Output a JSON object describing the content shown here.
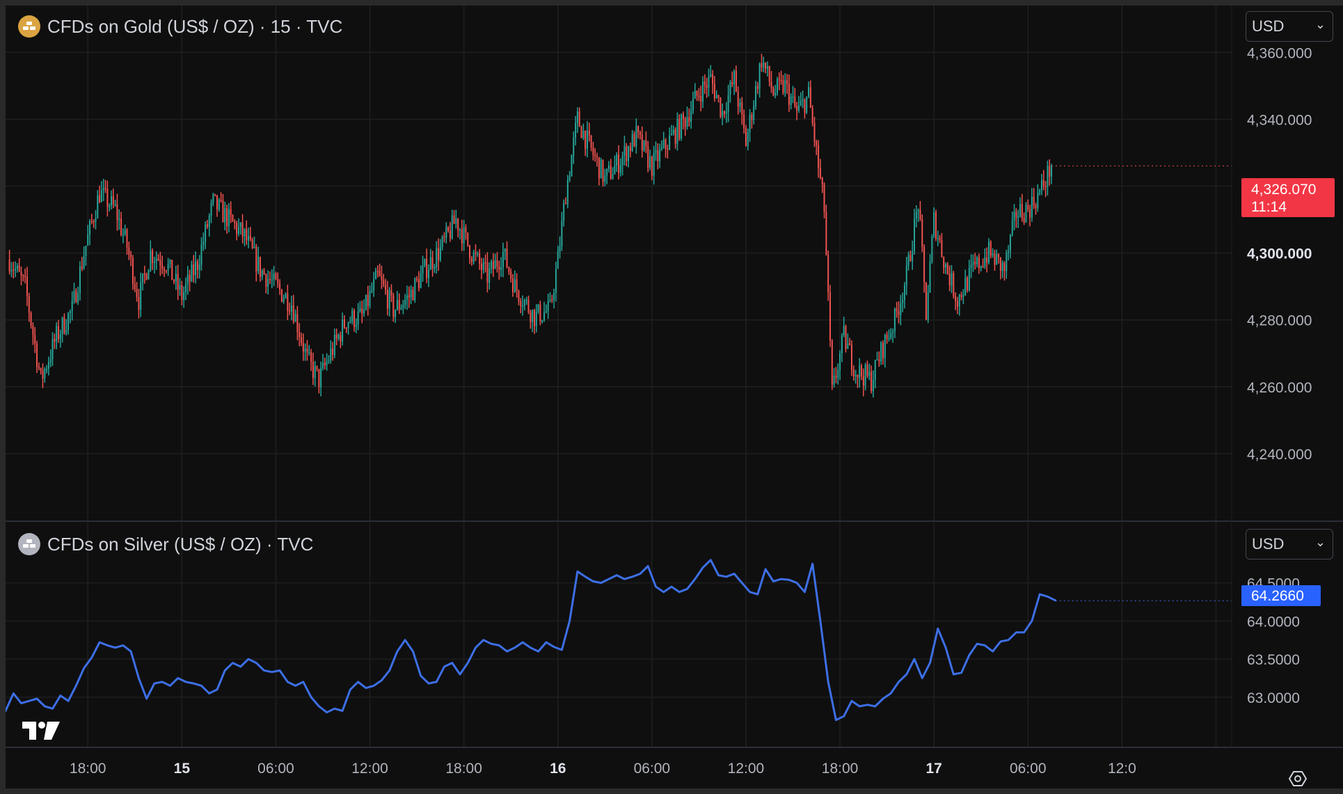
{
  "gold_legend": {
    "icon": "gold-bars-icon",
    "title": "CFDs on Gold (US$ / OZ) · 15 · TVC",
    "icon_color": "#d9a441"
  },
  "silver_legend": {
    "icon": "silver-bars-icon",
    "title": "CFDs on Silver (US$ / OZ) · TVC",
    "icon_color": "#b2b5be"
  },
  "gold_currency": {
    "value": "USD"
  },
  "silver_currency": {
    "value": "USD"
  },
  "gold_last": {
    "price": "4,326.070",
    "countdown": "11:14",
    "color": "#f23645"
  },
  "silver_last": {
    "price": "64.2660",
    "color": "#2962ff"
  },
  "settings": {
    "icon": "gear-icon"
  },
  "logo": {
    "icon": "tradingview-logo-icon"
  },
  "colors": {
    "background": "#0f0f0f",
    "grid": "#1f1f1f",
    "up": "#26a69a",
    "down": "#ef5350",
    "silver_line": "#3d6fe6",
    "text": "#d1d4dc"
  },
  "chart_data": [
    {
      "type": "candlestick",
      "title": "CFDs on Gold (US$ / OZ) · 15 · TVC",
      "ylim": [
        4220,
        4374
      ],
      "y_ticks": [
        4240,
        4260,
        4280,
        4300,
        4340,
        4360
      ],
      "y_tick_labels": [
        "4,240.000",
        "4,260.000",
        "4,280.000",
        "4,300.000",
        "4,340.000",
        "4,360.000"
      ],
      "emphasized_tick": "4,300.000",
      "x_ticks": [
        18,
        30,
        42,
        54,
        66,
        78,
        90,
        102,
        114,
        126,
        138,
        150,
        162
      ],
      "x_tick_labels": [
        "18:00",
        "15",
        "06:00",
        "12:00",
        "18:00",
        "16",
        "06:00",
        "12:00",
        "18:00",
        "17",
        "06:00",
        "12:0"
      ],
      "bold_x_ticks": [
        "15",
        "16",
        "17"
      ],
      "x_label_positions": [
        18,
        30,
        42,
        54,
        66,
        78,
        90,
        102,
        114,
        126,
        138,
        150
      ],
      "x_range_hours": [
        7.5,
        164
      ],
      "grid": true,
      "anchors": [
        [
          8,
          4298
        ],
        [
          10,
          4290
        ],
        [
          12,
          4262
        ],
        [
          14,
          4275
        ],
        [
          16,
          4283
        ],
        [
          17.5,
          4300
        ],
        [
          19.5,
          4318
        ],
        [
          21.5,
          4313
        ],
        [
          23,
          4302
        ],
        [
          24.5,
          4286
        ],
        [
          26,
          4300
        ],
        [
          28,
          4297
        ],
        [
          30,
          4287
        ],
        [
          32,
          4297
        ],
        [
          34,
          4315
        ],
        [
          36,
          4310
        ],
        [
          38,
          4305
        ],
        [
          40,
          4295
        ],
        [
          42,
          4290
        ],
        [
          44,
          4285
        ],
        [
          46,
          4268
        ],
        [
          47.5,
          4262
        ],
        [
          49,
          4270
        ],
        [
          51,
          4280
        ],
        [
          53,
          4281
        ],
        [
          55,
          4293
        ],
        [
          57,
          4283
        ],
        [
          59,
          4287
        ],
        [
          61,
          4295
        ],
        [
          63,
          4301
        ],
        [
          65,
          4310
        ],
        [
          67,
          4300
        ],
        [
          69,
          4293
        ],
        [
          71,
          4300
        ],
        [
          72.5,
          4290
        ],
        [
          75,
          4281
        ],
        [
          77,
          4283
        ],
        [
          78,
          4298
        ],
        [
          79,
          4318
        ],
        [
          80.5,
          4340
        ],
        [
          82,
          4332
        ],
        [
          84,
          4322
        ],
        [
          86,
          4328
        ],
        [
          88,
          4335
        ],
        [
          90,
          4326
        ],
        [
          92,
          4333
        ],
        [
          94,
          4339
        ],
        [
          96,
          4348
        ],
        [
          97.5,
          4352
        ],
        [
          99,
          4342
        ],
        [
          100.5,
          4352
        ],
        [
          102,
          4333
        ],
        [
          104,
          4358
        ],
        [
          105.5,
          4348
        ],
        [
          107,
          4350
        ],
        [
          108.5,
          4342
        ],
        [
          110,
          4347
        ],
        [
          111,
          4330
        ],
        [
          112,
          4313
        ],
        [
          113,
          4258
        ],
        [
          114.5,
          4275
        ],
        [
          116,
          4265
        ],
        [
          118,
          4262
        ],
        [
          119.5,
          4272
        ],
        [
          121,
          4280
        ],
        [
          122.5,
          4293
        ],
        [
          124,
          4315
        ],
        [
          125,
          4282
        ],
        [
          126,
          4310
        ],
        [
          127.5,
          4296
        ],
        [
          129,
          4286
        ],
        [
          131,
          4295
        ],
        [
          133,
          4300
        ],
        [
          135,
          4295
        ],
        [
          136.5,
          4312
        ],
        [
          138,
          4313
        ],
        [
          139.5,
          4318
        ],
        [
          141,
          4326
        ]
      ],
      "last_price": 4326.07,
      "price_label": "4,326.070",
      "countdown": "11:14"
    },
    {
      "type": "line",
      "title": "CFDs on Silver (US$ / OZ) · TVC",
      "ylim": [
        62.35,
        65.3
      ],
      "y_ticks": [
        63.0,
        63.5,
        64.0,
        64.5
      ],
      "y_tick_labels": [
        "63.0000",
        "63.5000",
        "64.0000",
        "64.5000"
      ],
      "x": [
        7.5,
        8.5,
        9.5,
        10.5,
        11.5,
        12.5,
        13.5,
        14.5,
        15.5,
        16.5,
        17.5,
        18.5,
        19.5,
        20.5,
        21.5,
        22.5,
        23.5,
        24.5,
        25.5,
        26.5,
        27.5,
        28.5,
        29.5,
        30.5,
        31.5,
        32.5,
        33.5,
        34.5,
        35.5,
        36.5,
        37.5,
        38.5,
        39.5,
        40.5,
        41.5,
        42.5,
        43.5,
        44.5,
        45.5,
        46.5,
        47.5,
        48.5,
        49.5,
        50.5,
        51.5,
        52.5,
        53.5,
        54.5,
        55.5,
        56.5,
        57.5,
        58.5,
        59.5,
        60.5,
        61.5,
        62.5,
        63.5,
        64.5,
        65.5,
        66.5,
        67.5,
        68.5,
        69.5,
        70.5,
        71.5,
        72.5,
        73.5,
        74.5,
        75.5,
        76.5,
        77.5,
        78.5,
        79.5,
        80.5,
        81.5,
        82.5,
        83.5,
        84.5,
        85.5,
        86.5,
        87.5,
        88.5,
        89.5,
        90.5,
        91.5,
        92.5,
        93.5,
        94.5,
        95.5,
        96.5,
        97.5,
        98.5,
        99.5,
        100.5,
        101.5,
        102.5,
        103.5,
        104.5,
        105.5,
        106.5,
        107.5,
        108.5,
        109.5,
        110.5,
        111.5,
        112.5,
        113.5,
        114.5,
        115.5,
        116.5,
        117.5,
        118.5,
        119.5,
        120.5,
        121.5,
        122.5,
        123.5,
        124.5,
        125.5,
        126.5,
        127.5,
        128.5,
        129.5,
        130.5,
        131.5,
        132.5,
        133.5,
        134.5,
        135.5,
        136.5,
        137.5,
        138.5,
        139.5,
        140.5,
        141.5
      ],
      "values": [
        62.82,
        63.05,
        62.92,
        62.95,
        62.98,
        62.88,
        62.85,
        63.02,
        62.95,
        63.15,
        63.38,
        63.52,
        63.72,
        63.68,
        63.65,
        63.68,
        63.6,
        63.25,
        62.98,
        63.18,
        63.2,
        63.15,
        63.25,
        63.2,
        63.18,
        63.15,
        63.05,
        63.1,
        63.35,
        63.45,
        63.4,
        63.5,
        63.45,
        63.35,
        63.33,
        63.35,
        63.2,
        63.15,
        63.2,
        63.0,
        62.88,
        62.8,
        62.85,
        62.82,
        63.1,
        63.2,
        63.12,
        63.15,
        63.22,
        63.35,
        63.6,
        63.75,
        63.6,
        63.28,
        63.18,
        63.2,
        63.4,
        63.45,
        63.3,
        63.45,
        63.65,
        63.75,
        63.7,
        63.68,
        63.6,
        63.65,
        63.72,
        63.65,
        63.6,
        63.72,
        63.66,
        63.62,
        64.0,
        64.65,
        64.58,
        64.52,
        64.5,
        64.55,
        64.6,
        64.55,
        64.58,
        64.62,
        64.72,
        64.45,
        64.38,
        64.45,
        64.38,
        64.42,
        64.55,
        64.7,
        64.8,
        64.6,
        64.58,
        64.62,
        64.5,
        64.38,
        64.35,
        64.68,
        64.52,
        64.55,
        64.54,
        64.5,
        64.38,
        64.75,
        64.0,
        63.2,
        62.7,
        62.75,
        62.95,
        62.88,
        62.9,
        62.88,
        62.98,
        63.05,
        63.2,
        63.3,
        63.5,
        63.25,
        63.45,
        63.9,
        63.65,
        63.3,
        63.32,
        63.55,
        63.7,
        63.68,
        63.6,
        63.73,
        63.75,
        63.85,
        63.85,
        64.0,
        64.35,
        64.32,
        64.27
      ],
      "last_price": 64.266,
      "price_label": "64.2660"
    }
  ]
}
